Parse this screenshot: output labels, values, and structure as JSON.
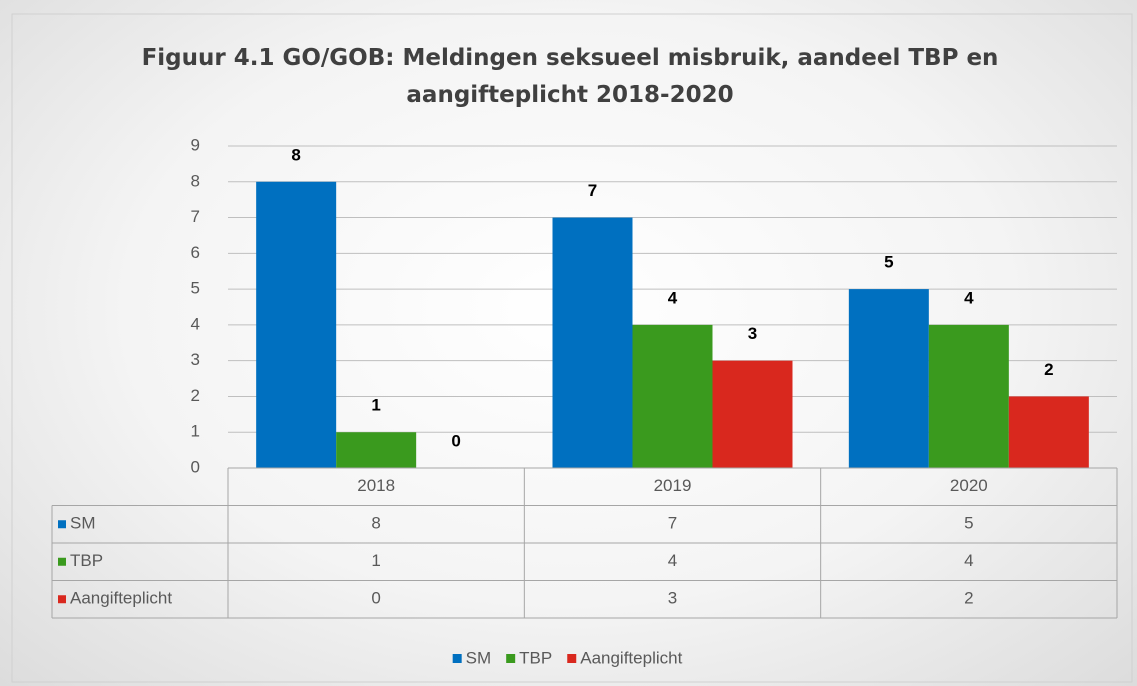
{
  "chart_data": {
    "type": "bar",
    "title": "Figuur 4.1 GO/GOB: Meldingen seksueel misbruik, aandeel TBP en aangifteplicht 2018-2020",
    "categories": [
      "2018",
      "2019",
      "2020"
    ],
    "series": [
      {
        "name": "SM",
        "color": "#0070c0",
        "values": [
          8,
          7,
          5
        ]
      },
      {
        "name": "TBP",
        "color": "#3a9a1e",
        "values": [
          1,
          4,
          4
        ]
      },
      {
        "name": "Aangifteplicht",
        "color": "#d9281e",
        "values": [
          0,
          3,
          2
        ]
      }
    ],
    "ylim": [
      0,
      9
    ],
    "yticks": [
      0,
      1,
      2,
      3,
      4,
      5,
      6,
      7,
      8,
      9
    ],
    "grid": true,
    "data_table": true,
    "legend": "bottom"
  }
}
